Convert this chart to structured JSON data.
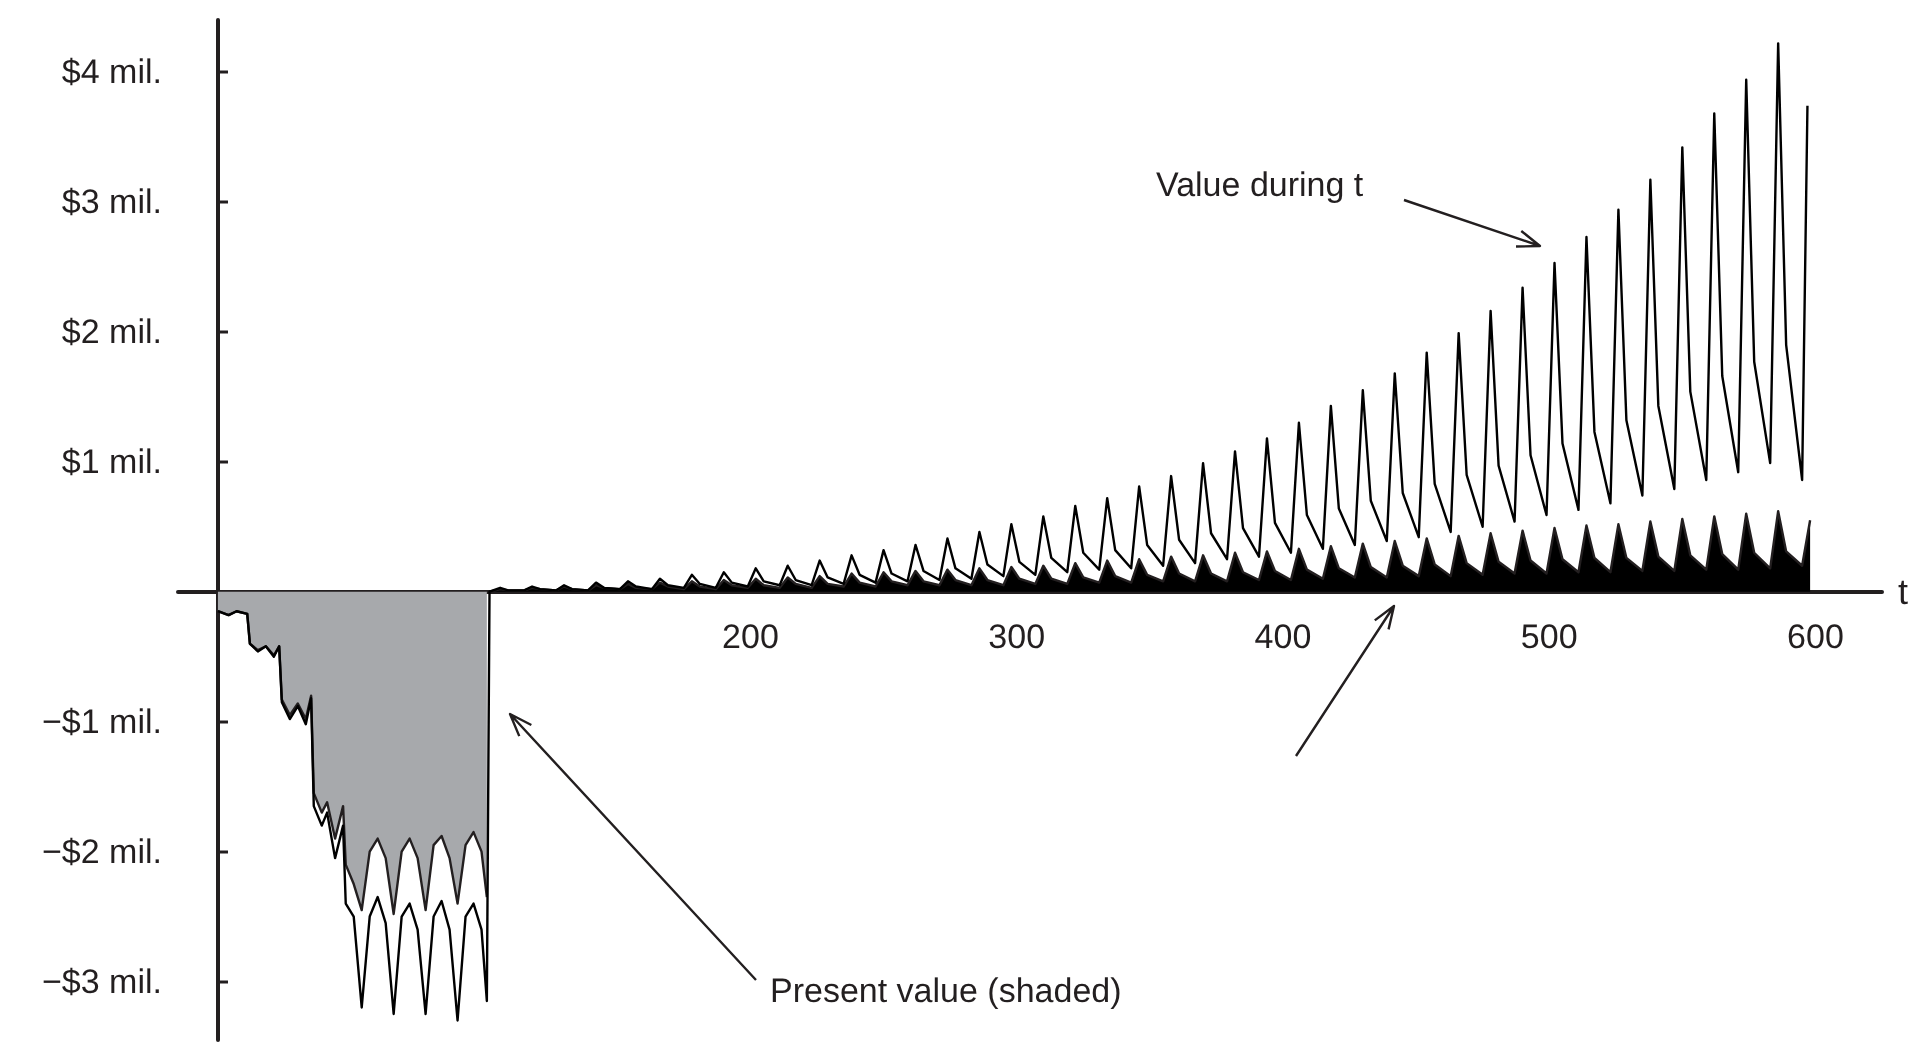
{
  "chart_data": {
    "type": "line",
    "xlabel": "t",
    "xlim": [
      -15,
      625
    ],
    "ylim": [
      -3.45,
      4.4
    ],
    "xticks": [
      200,
      300,
      400,
      500,
      600
    ],
    "yticks": [
      {
        "value": -3,
        "label": "−$3 mil."
      },
      {
        "value": -2,
        "label": "−$2 mil."
      },
      {
        "value": -1,
        "label": "−$1 mil."
      },
      {
        "value": 1,
        "label": "$1 mil."
      },
      {
        "value": 2,
        "label": "$2 mil."
      },
      {
        "value": 3,
        "label": "$3 mil."
      },
      {
        "value": 4,
        "label": "$4 mil."
      }
    ],
    "annotations": [
      "Value during t",
      "Present value (shaded)"
    ],
    "series": [
      {
        "type": "area",
        "color": "#a7a9ac",
        "x": [
          0,
          4,
          7,
          11,
          12,
          15,
          18,
          21,
          23,
          24,
          27,
          30,
          33,
          35,
          36,
          39,
          41,
          44,
          47,
          48,
          51,
          54,
          57,
          60,
          63,
          66,
          69,
          72,
          75,
          78,
          81,
          84,
          87,
          90,
          93,
          96,
          99,
          101
        ],
        "values": [
          -0.15,
          -0.18,
          -0.15,
          -0.17,
          -0.4,
          -0.45,
          -0.42,
          -0.49,
          -0.42,
          -0.83,
          -0.95,
          -0.86,
          -0.98,
          -0.8,
          -1.55,
          -1.7,
          -1.62,
          -1.9,
          -1.65,
          -2.1,
          -2.25,
          -2.45,
          -2.0,
          -1.9,
          -2.05,
          -2.48,
          -2.0,
          -1.9,
          -2.05,
          -2.45,
          -1.95,
          -1.88,
          -2.05,
          -2.4,
          -1.95,
          -1.85,
          -2.0,
          -2.35
        ]
      },
      {
        "type": "area",
        "color": "#000000",
        "x": [
          102,
          106,
          109,
          115,
          118,
          121,
          127,
          130,
          133,
          139,
          142,
          145,
          151,
          154,
          157,
          163,
          166,
          169,
          175,
          178,
          181,
          187,
          190,
          193,
          199,
          202,
          205,
          211,
          214,
          217,
          223,
          226,
          229,
          235,
          238,
          241,
          247,
          250,
          253,
          259,
          262,
          265,
          271,
          274,
          277,
          283,
          286,
          289,
          295,
          298,
          301,
          307,
          310,
          313,
          319,
          322,
          325,
          331,
          334,
          337,
          343,
          346,
          349,
          355,
          358,
          361,
          367,
          370,
          373,
          379,
          382,
          385,
          391,
          394,
          397,
          403,
          406,
          409,
          415,
          418,
          421,
          427,
          430,
          433,
          439,
          442,
          445,
          451,
          454,
          457,
          463,
          466,
          469,
          475,
          478,
          481,
          487,
          490,
          493,
          499,
          502,
          505,
          511,
          514,
          517,
          523,
          526,
          529,
          535,
          538,
          541,
          547,
          550,
          553,
          559,
          562,
          565,
          571,
          574,
          577,
          583,
          586,
          589,
          595,
          598
        ],
        "values": [
          0,
          0.02,
          0.01,
          0.01,
          0.03,
          0.02,
          0.01,
          0.04,
          0.02,
          0.01,
          0.05,
          0.03,
          0.02,
          0.06,
          0.03,
          0.02,
          0.07,
          0.04,
          0.02,
          0.08,
          0.04,
          0.02,
          0.09,
          0.05,
          0.03,
          0.1,
          0.05,
          0.03,
          0.11,
          0.06,
          0.03,
          0.12,
          0.06,
          0.04,
          0.14,
          0.07,
          0.04,
          0.15,
          0.08,
          0.05,
          0.16,
          0.08,
          0.05,
          0.17,
          0.09,
          0.05,
          0.18,
          0.09,
          0.05,
          0.19,
          0.1,
          0.06,
          0.2,
          0.1,
          0.06,
          0.22,
          0.11,
          0.07,
          0.24,
          0.12,
          0.07,
          0.25,
          0.13,
          0.08,
          0.27,
          0.14,
          0.08,
          0.28,
          0.14,
          0.08,
          0.3,
          0.15,
          0.09,
          0.31,
          0.16,
          0.09,
          0.33,
          0.17,
          0.1,
          0.35,
          0.18,
          0.11,
          0.37,
          0.19,
          0.11,
          0.39,
          0.2,
          0.12,
          0.41,
          0.21,
          0.12,
          0.43,
          0.22,
          0.13,
          0.45,
          0.23,
          0.14,
          0.47,
          0.24,
          0.14,
          0.49,
          0.25,
          0.15,
          0.51,
          0.26,
          0.15,
          0.52,
          0.26,
          0.16,
          0.54,
          0.27,
          0.16,
          0.56,
          0.28,
          0.17,
          0.58,
          0.29,
          0.17,
          0.6,
          0.3,
          0.18,
          0.62,
          0.31,
          0.2,
          0.55
        ]
      },
      {
        "color": "#000000",
        "x": [
          0,
          4,
          7,
          11,
          12,
          15,
          18,
          21,
          23,
          24,
          27,
          30,
          33,
          35,
          36,
          39,
          41,
          44,
          47,
          48,
          51,
          54,
          57,
          60,
          63,
          66,
          69,
          72,
          75,
          78,
          81,
          84,
          87,
          90,
          93,
          96,
          99,
          101,
          102,
          106,
          109,
          115,
          118,
          121,
          127,
          130,
          133,
          139,
          142,
          145,
          151,
          154,
          157,
          163,
          166,
          169,
          175,
          178,
          181,
          187,
          190,
          193,
          199,
          202,
          205,
          211,
          214,
          217,
          223,
          226,
          229,
          235,
          238,
          241,
          247,
          250,
          253,
          259,
          262,
          265,
          271,
          274,
          277,
          283,
          286,
          289,
          295,
          298,
          301,
          307,
          310,
          313,
          319,
          322,
          325,
          331,
          334,
          337,
          343,
          346,
          349,
          355,
          358,
          361,
          367,
          370,
          373,
          379,
          382,
          385,
          391,
          394,
          397,
          403,
          406,
          409,
          415,
          418,
          421,
          427,
          430,
          433,
          439,
          442,
          445,
          451,
          454,
          457,
          463,
          466,
          469,
          475,
          478,
          481,
          487,
          490,
          493,
          499,
          502,
          505,
          511,
          514,
          517,
          523,
          526,
          529,
          535,
          538,
          541,
          547,
          550,
          553,
          559,
          562,
          565,
          571,
          574,
          577,
          583,
          586,
          589,
          595,
          597
        ],
        "values": [
          -0.15,
          -0.18,
          -0.15,
          -0.17,
          -0.4,
          -0.46,
          -0.42,
          -0.5,
          -0.42,
          -0.85,
          -0.98,
          -0.88,
          -1.02,
          -0.82,
          -1.65,
          -1.8,
          -1.7,
          -2.05,
          -1.8,
          -2.4,
          -2.5,
          -3.2,
          -2.5,
          -2.35,
          -2.55,
          -3.25,
          -2.5,
          -2.4,
          -2.6,
          -3.25,
          -2.5,
          -2.38,
          -2.6,
          -3.3,
          -2.5,
          -2.4,
          -2.6,
          -3.15,
          0,
          0.03,
          0.01,
          0.01,
          0.04,
          0.02,
          0.01,
          0.05,
          0.02,
          0.01,
          0.07,
          0.03,
          0.02,
          0.08,
          0.04,
          0.02,
          0.1,
          0.05,
          0.03,
          0.13,
          0.06,
          0.03,
          0.15,
          0.07,
          0.04,
          0.18,
          0.08,
          0.05,
          0.2,
          0.09,
          0.05,
          0.24,
          0.11,
          0.06,
          0.28,
          0.13,
          0.07,
          0.32,
          0.14,
          0.08,
          0.36,
          0.16,
          0.09,
          0.41,
          0.18,
          0.1,
          0.46,
          0.21,
          0.12,
          0.52,
          0.23,
          0.13,
          0.58,
          0.26,
          0.15,
          0.66,
          0.3,
          0.17,
          0.72,
          0.32,
          0.18,
          0.81,
          0.36,
          0.2,
          0.89,
          0.4,
          0.22,
          0.99,
          0.45,
          0.25,
          1.08,
          0.49,
          0.27,
          1.18,
          0.53,
          0.3,
          1.3,
          0.59,
          0.33,
          1.43,
          0.64,
          0.36,
          1.55,
          0.7,
          0.39,
          1.68,
          0.76,
          0.42,
          1.84,
          0.83,
          0.46,
          1.99,
          0.9,
          0.5,
          2.16,
          0.97,
          0.54,
          2.34,
          1.05,
          0.59,
          2.53,
          1.14,
          0.63,
          2.73,
          1.23,
          0.68,
          2.94,
          1.32,
          0.74,
          3.17,
          1.43,
          0.79,
          3.42,
          1.54,
          0.86,
          3.68,
          1.66,
          0.92,
          3.94,
          1.77,
          0.99,
          4.22,
          1.9,
          0.86,
          3.74
        ]
      }
    ]
  }
}
